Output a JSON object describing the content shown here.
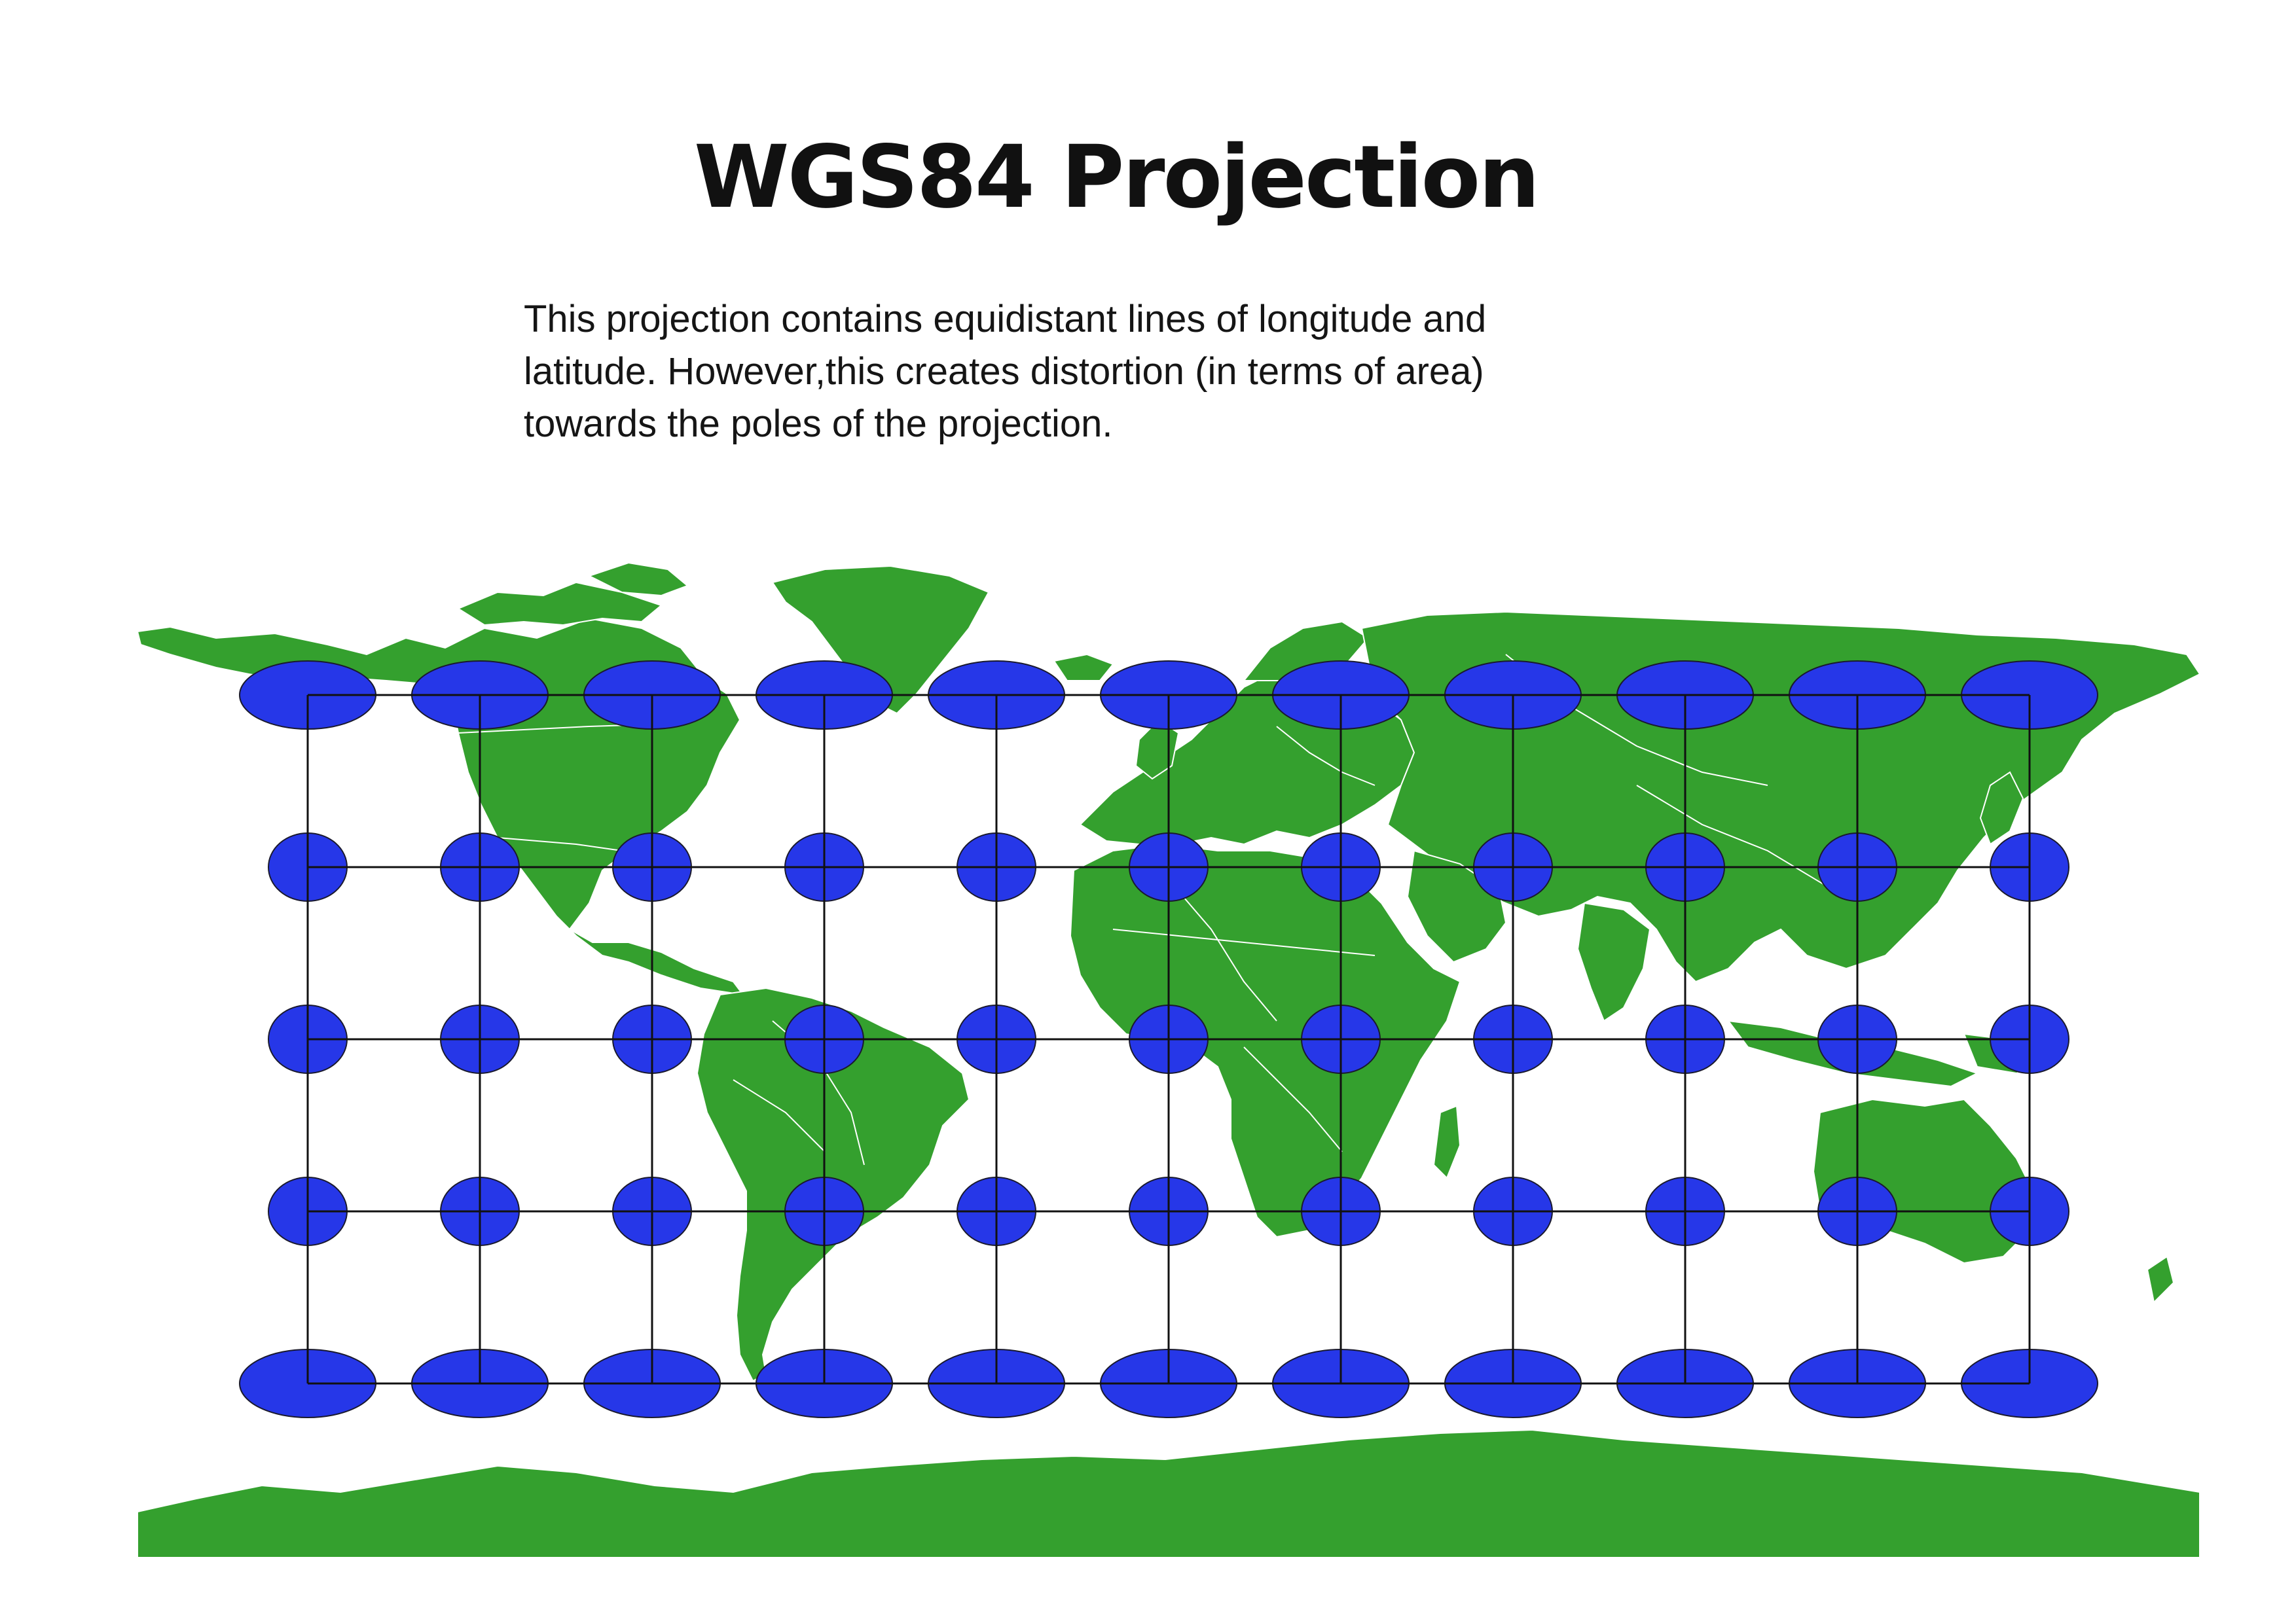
{
  "title": "WGS84 Projection",
  "description": {
    "lines": [
      "This projection contains equidistant lines of longitude and",
      "latitude. However,this creates distortion (in terms of area)",
      "towards the poles of the projection."
    ]
  },
  "map": {
    "projection": "WGS84 (equirectangular)",
    "colors": {
      "land": "#34a02e",
      "border": "#ffffff",
      "ocean": "#ffffff",
      "indicatrix": "#2637e8",
      "indicatrix_stroke": "#1a1a2e",
      "graticule": "#111111"
    },
    "graticule": {
      "columns": 11,
      "rows": 5
    },
    "indicatrix_rows": [
      {
        "row": 1,
        "shape": "wide-ellipse"
      },
      {
        "row": 2,
        "shape": "circle"
      },
      {
        "row": 3,
        "shape": "circle"
      },
      {
        "row": 4,
        "shape": "circle"
      },
      {
        "row": 5,
        "shape": "wide-ellipse"
      }
    ]
  }
}
